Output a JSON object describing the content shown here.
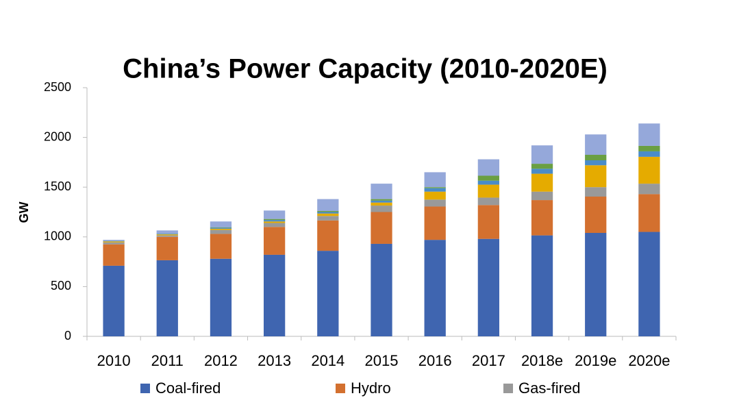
{
  "chart_data": {
    "type": "stacked_bar",
    "title": "China’s Power Capacity (2010-2020E)",
    "y_label": "GW",
    "categories": [
      "2010",
      "2011",
      "2012",
      "2013",
      "2014",
      "2015",
      "2016",
      "2017",
      "2018e",
      "2019e",
      "2020e"
    ],
    "series": [
      {
        "name": "Coal-fired",
        "color": "#3f65b0",
        "values": [
          710,
          765,
          780,
          820,
          860,
          930,
          970,
          980,
          1015,
          1040,
          1050
        ]
      },
      {
        "name": "Hydro",
        "color": "#d3702f",
        "values": [
          215,
          235,
          250,
          280,
          305,
          320,
          335,
          340,
          355,
          365,
          380
        ]
      },
      {
        "name": "Gas-fired",
        "color": "#999999",
        "values": [
          20,
          15,
          40,
          40,
          45,
          65,
          70,
          75,
          85,
          95,
          105
        ]
      },
      {
        "color": "#e5ab00",
        "values": [
          10,
          10,
          12,
          15,
          25,
          30,
          80,
          130,
          180,
          220,
          270
        ]
      },
      {
        "color": "#4a8cc8",
        "values": [
          5,
          5,
          10,
          15,
          15,
          20,
          35,
          40,
          50,
          50,
          55
        ]
      },
      {
        "color": "#6a9f42",
        "values": [
          0,
          2,
          5,
          10,
          10,
          15,
          10,
          50,
          50,
          55,
          55
        ]
      },
      {
        "color": "#95a8da",
        "values": [
          10,
          33,
          58,
          85,
          120,
          155,
          150,
          165,
          185,
          205,
          225
        ]
      }
    ],
    "ylim": [
      0,
      2500
    ],
    "yticks": [
      0,
      500,
      1000,
      1500,
      2000,
      2500
    ]
  }
}
